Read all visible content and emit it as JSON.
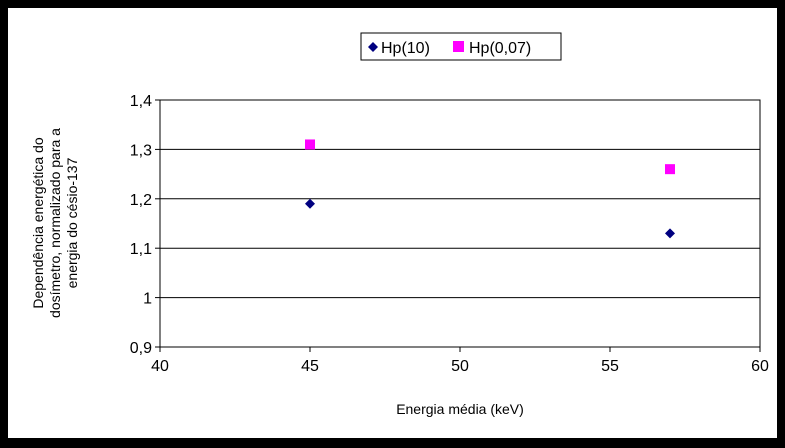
{
  "chart_data": {
    "type": "scatter",
    "xlabel": "Energia média (keV)",
    "ylabel_lines": [
      "Dependência energética do",
      "dosímetro, normalizado para a",
      "energia do césio-137"
    ],
    "xlim": [
      40,
      60
    ],
    "ylim": [
      0.9,
      1.4
    ],
    "xticks": [
      40,
      45,
      50,
      55,
      60
    ],
    "xtick_labels": [
      "40",
      "45",
      "50",
      "55",
      "60"
    ],
    "yticks": [
      0.9,
      1.0,
      1.1,
      1.2,
      1.3,
      1.4
    ],
    "ytick_labels": [
      "0,9",
      "1",
      "1,1",
      "1,2",
      "1,3",
      "1,4"
    ],
    "grid": "horizontal",
    "legend_position": "top",
    "series": [
      {
        "name": "Hp(10)",
        "marker": "diamond",
        "color": "#000080",
        "x": [
          45,
          57
        ],
        "y": [
          1.19,
          1.13
        ]
      },
      {
        "name": "Hp(0,07)",
        "marker": "square",
        "color": "#FF00FF",
        "x": [
          45,
          57
        ],
        "y": [
          1.31,
          1.26
        ]
      }
    ]
  }
}
